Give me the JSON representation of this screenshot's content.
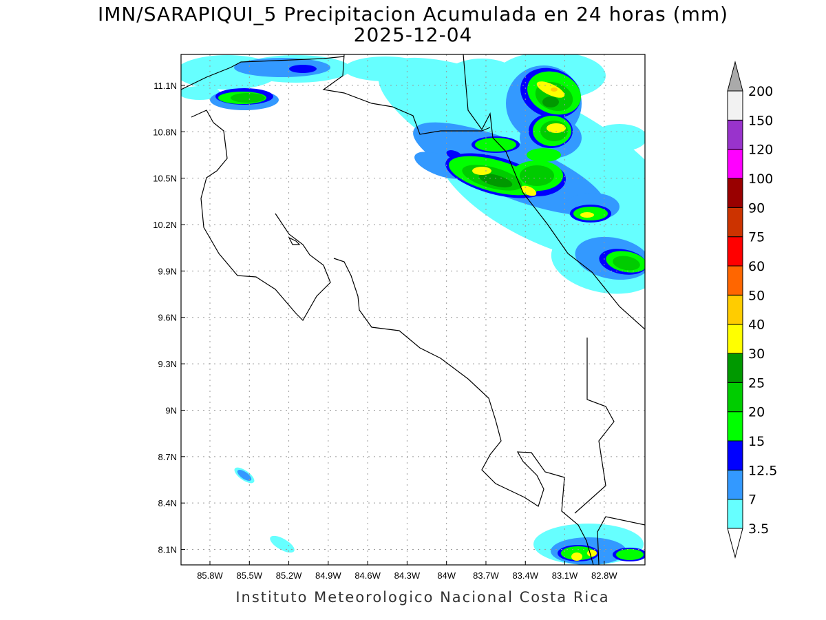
{
  "title": "IMN/SARAPIQUI_5 Precipitacion Acumulada en 24 horas (mm)",
  "subtitle": "2025-12-04",
  "footer": "Instituto Meteorologico Nacional Costa Rica",
  "map": {
    "variable": "Precipitacion Acumulada en 24 horas",
    "units": "mm",
    "lon_range": [
      -86.02,
      -82.49
    ],
    "lat_range": [
      8.0,
      11.3
    ],
    "grid": "dotted",
    "lon_ticks": [
      "85.8W",
      "85.5W",
      "85.2W",
      "84.9W",
      "84.6W",
      "84.3W",
      "84W",
      "83.7W",
      "83.4W",
      "83.1W",
      "82.8W"
    ],
    "lon_values": [
      -85.8,
      -85.5,
      -85.2,
      -84.9,
      -84.6,
      -84.3,
      -84.0,
      -83.7,
      -83.4,
      -83.1,
      -82.8
    ],
    "lat_ticks": [
      "11.1N",
      "10.8N",
      "10.5N",
      "10.2N",
      "9.9N",
      "9.6N",
      "9.3N",
      "9N",
      "8.7N",
      "8.4N",
      "8.1N"
    ],
    "lat_values": [
      11.1,
      10.8,
      10.5,
      10.2,
      9.9,
      9.6,
      9.3,
      9.0,
      8.7,
      8.4,
      8.1
    ]
  },
  "colorbar": {
    "labels": [
      "3.5",
      "7",
      "12.5",
      "15",
      "20",
      "25",
      "30",
      "40",
      "50",
      "60",
      "75",
      "90",
      "100",
      "120",
      "150",
      "200"
    ],
    "colors": [
      "#66ffff",
      "#3399ff",
      "#0000ff",
      "#00ff00",
      "#00cc00",
      "#009900",
      "#ffff00",
      "#ffcc00",
      "#ff6600",
      "#ff0000",
      "#cc3300",
      "#990000",
      "#ff00ff",
      "#9933cc",
      "#f2f2f2"
    ],
    "over_color": "#aaaaaa",
    "under_color": "#ffffff"
  }
}
